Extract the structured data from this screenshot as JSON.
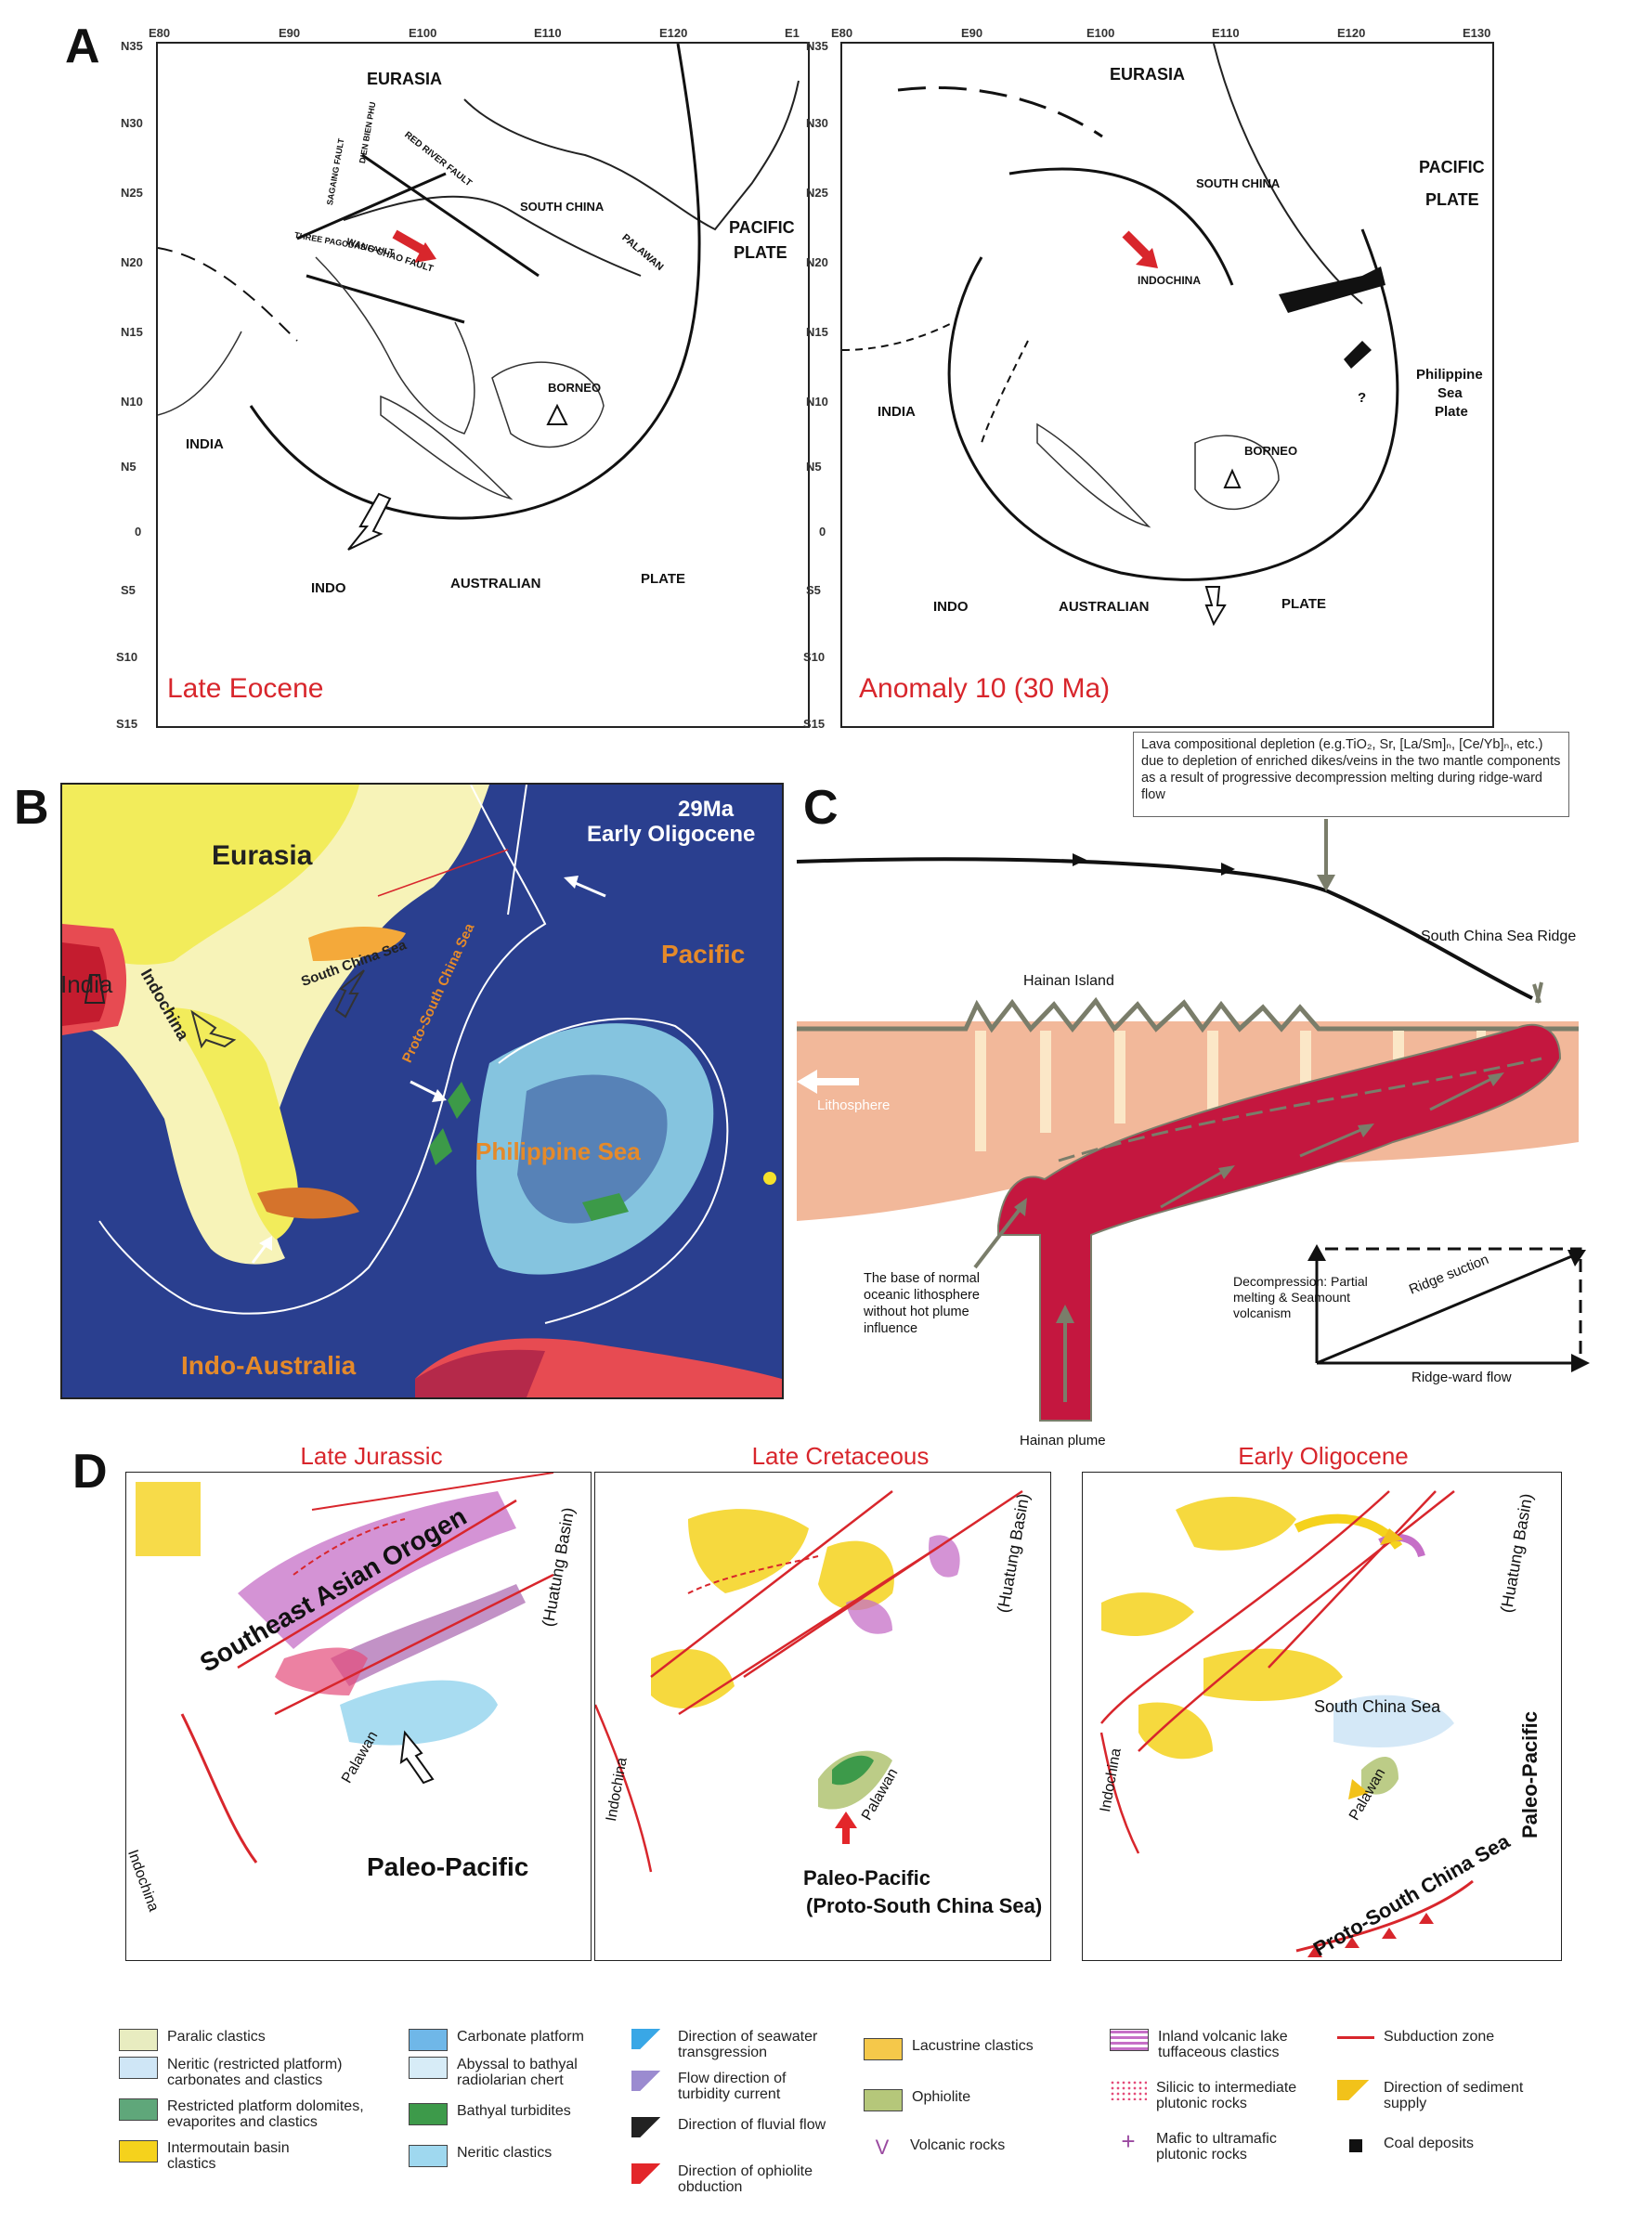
{
  "panels": {
    "A": {
      "letter": "A",
      "left": {
        "lon_ticks": [
          "E80",
          "E90",
          "E100",
          "E110",
          "E120",
          "E1"
        ],
        "lat_ticks": [
          "N35",
          "N30",
          "N25",
          "N20",
          "N15",
          "N10",
          "N5",
          "0",
          "S5",
          "S10",
          "S15"
        ],
        "labels": {
          "eurasia": "EURASIA",
          "south_china": "SOUTH CHINA",
          "pacific": "PACIFIC",
          "plate": "PLATE",
          "india": "INDIA",
          "borneo": "BORNEO",
          "indo": "INDO",
          "australian": "AUSTRALIAN",
          "plate2": "PLATE",
          "red_river": "RED RIVER FAULT",
          "wang_chao": "WANG CHAO FAULT",
          "three_pagodas": "THREE PAGODAS FAULT",
          "dien_bien": "DIEN BIEN PHU",
          "sagaing": "SAGAING FAULT",
          "palawan": "PALAWAN"
        },
        "era": "Late Eocene"
      },
      "right": {
        "lon_ticks": [
          "E80",
          "E90",
          "E100",
          "E110",
          "E120",
          "E130"
        ],
        "lat_ticks": [
          "N35",
          "N30",
          "N25",
          "N20",
          "N15",
          "N10",
          "N5",
          "0",
          "S5",
          "S10",
          "S15"
        ],
        "labels": {
          "eurasia": "EURASIA",
          "south_china": "SOUTH CHINA",
          "pacific": "PACIFIC",
          "plate": "PLATE",
          "indochina": "INDOCHINA",
          "philippine": "Philippine",
          "sea": "Sea",
          "plate_ph": "Plate",
          "india": "INDIA",
          "borneo": "BORNEO",
          "indo": "INDO",
          "australian": "AUSTRALIAN",
          "plate2": "PLATE",
          "question": "?"
        },
        "era": "Anomaly 10 (30 Ma)"
      }
    },
    "B": {
      "letter": "B",
      "age": "29Ma",
      "epoch": "Early Oligocene",
      "eurasia": "Eurasia",
      "india": "India",
      "indochina": "Indochina",
      "scs": "South China Sea",
      "pacific": "Pacific",
      "proto_scs": "Proto-South China Sea",
      "philippine_sea": "Philippine Sea",
      "indo_australia": "Indo-Australia"
    },
    "C": {
      "letter": "C",
      "callout": "Lava compositional depletion (e.g.TiO₂, Sr, [La/Sm]ₙ, [Ce/Yb]ₙ, etc.) due to depletion of enriched dikes/veins in the two mantle components as a result of progressive decompression melting during ridge-ward flow",
      "ridge": "South China Sea Ridge",
      "island": "Hainan Island",
      "lithosphere": "Lithosphere",
      "base_note": "The base of normal oceanic lithosphere without hot plume influence",
      "decompression": "Decompression: Partial melting & Seamount volcanism",
      "ridge_suction": "Ridge suction",
      "ridge_flow": "Ridge-ward flow",
      "plume": "Hainan plume"
    },
    "D": {
      "letter": "D",
      "maps": [
        {
          "title": "Late Jurassic",
          "labels": [
            "Southeast Asian Orogen",
            "(Huatung Basin)",
            "Indochina",
            "Palawan",
            "Paleo-Pacific"
          ]
        },
        {
          "title": "Late Cretaceous",
          "labels": [
            "(Huatung Basin)",
            "Indochina",
            "Palawan",
            "Paleo-Pacific",
            "(Proto-South China Sea)"
          ]
        },
        {
          "title": "Early Oligocene",
          "labels": [
            "South China Sea",
            "(Huatung Basin)",
            "Paleo-Pacific",
            "Indochina",
            "Palawan",
            "Proto-South China Sea"
          ]
        }
      ],
      "legend": [
        {
          "text": "Paralic clastics",
          "color": "#e8ecc0"
        },
        {
          "text": "Neritic (restricted platform) carbonates and clastics",
          "color": "#cfe6f6"
        },
        {
          "text": "Restricted platform dolomites, evaporites and clastics",
          "color": "#5fa77a"
        },
        {
          "text": "Intermoutain basin clastics",
          "color": "#f5d21c"
        },
        {
          "text": "Carbonate platform",
          "color": "#6fb7e8"
        },
        {
          "text": "Abyssal to bathyal radiolarian chert",
          "color": "#d7ecf7"
        },
        {
          "text": "Bathyal turbidites",
          "color": "#3d9a4a"
        },
        {
          "text": "Neritic clastics",
          "color": "#9fd8ef"
        },
        {
          "text": "Direction of seawater transgression",
          "color": "#39a7e6"
        },
        {
          "text": "Flow direction of turbidity current",
          "color": "#9b8bd0"
        },
        {
          "text": "Direction of fluvial flow",
          "color": "#222222"
        },
        {
          "text": "Direction of ophiolite obduction",
          "color": "#e3262a"
        },
        {
          "text": "Lacustrine clastics",
          "color": "#f5c84a"
        },
        {
          "text": "Ophiolite",
          "color": "#b5c77a"
        },
        {
          "text": "Volcanic rocks",
          "color": "#9a4aa0"
        },
        {
          "text": "Inland volcanic lake tuffaceous clastics",
          "color": "#c66fc7"
        },
        {
          "text": "Silicic to intermediate plutonic rocks",
          "color": "#e44c7a"
        },
        {
          "text": "Mafic to ultramafic plutonic rocks",
          "color": "#9a4aa0"
        },
        {
          "text": "Subduction zone",
          "color": "#d8262c"
        },
        {
          "text": "Direction of sediment supply",
          "color": "#f2c21a"
        },
        {
          "text": "Coal deposits",
          "color": "#111111"
        }
      ],
      "volcanic_symbol": "V"
    }
  },
  "colors": {
    "accent_red": "#d8262c",
    "ocean_blue": "#2a3f8f",
    "land_yellow": "#f2ec5b",
    "orange_label": "#e58a2a",
    "plume_red": "#c4173f",
    "lithosphere_peach": "#f2b89a"
  }
}
